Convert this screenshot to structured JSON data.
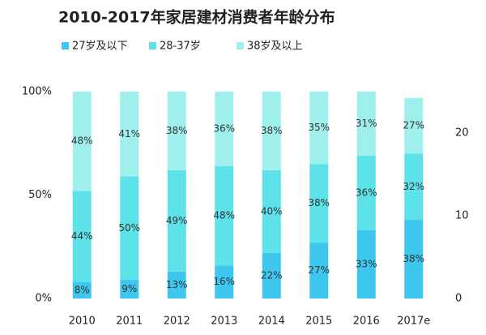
{
  "chart_data": {
    "type": "stacked_bar",
    "title": "2010-2017年家居建材消费者年龄分布",
    "categories": [
      "2010",
      "2011",
      "2012",
      "2013",
      "2014",
      "2015",
      "2016",
      "2017e"
    ],
    "series": [
      {
        "name": "27岁及以下",
        "color": "#3ec7ee",
        "values": [
          8,
          9,
          13,
          16,
          22,
          27,
          33,
          38
        ],
        "value_labels": [
          "8%",
          "9%",
          "13%",
          "16%",
          "22%",
          "27%",
          "33%",
          "38%"
        ]
      },
      {
        "name": "28-37岁",
        "color": "#5ce2e8",
        "values": [
          44,
          50,
          49,
          48,
          40,
          38,
          36,
          32
        ],
        "value_labels": [
          "44%",
          "50%",
          "49%",
          "48%",
          "40%",
          "38%",
          "36%",
          "32%"
        ]
      },
      {
        "name": "38岁及以上",
        "color": "#9ff0ec",
        "values": [
          48,
          41,
          38,
          36,
          38,
          35,
          31,
          27
        ],
        "value_labels": [
          "48%",
          "41%",
          "38%",
          "36%",
          "38%",
          "35%",
          "31%",
          "27%"
        ]
      }
    ],
    "ylim": [
      0,
      100
    ],
    "yticks": [
      {
        "value": 0,
        "label": "0%"
      },
      {
        "value": 50,
        "label": "50%"
      },
      {
        "value": 100,
        "label": "100%"
      }
    ],
    "y2lim": [
      0,
      25
    ],
    "y2ticks": [
      0,
      10,
      20
    ]
  }
}
